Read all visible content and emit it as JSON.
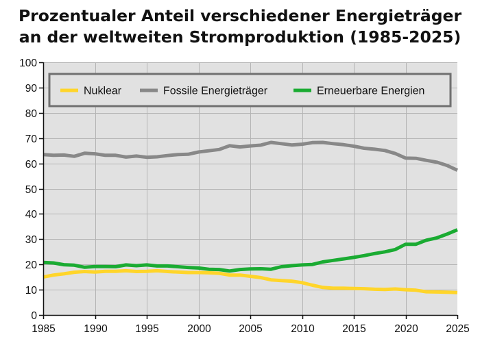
{
  "chart_data": {
    "type": "line",
    "title": [
      "Prozentualer Anteil verschiedener Energieträger",
      "an der weltweiten Stromproduktion (1985-2025)"
    ],
    "xlabel": "",
    "ylabel": "",
    "xlim": [
      1985,
      2025
    ],
    "ylim": [
      0,
      100
    ],
    "x_ticks": [
      1985,
      1990,
      1995,
      2000,
      2005,
      2010,
      2015,
      2020,
      2025
    ],
    "y_ticks": [
      0,
      10,
      20,
      30,
      40,
      50,
      60,
      70,
      80,
      90,
      100
    ],
    "grid": true,
    "legend_position": "top",
    "x": [
      1985,
      1986,
      1987,
      1988,
      1989,
      1990,
      1991,
      1992,
      1993,
      1994,
      1995,
      1996,
      1997,
      1998,
      1999,
      2000,
      2001,
      2002,
      2003,
      2004,
      2005,
      2006,
      2007,
      2008,
      2009,
      2010,
      2011,
      2012,
      2013,
      2014,
      2015,
      2016,
      2017,
      2018,
      2019,
      2020,
      2021,
      2022,
      2023,
      2024,
      2025
    ],
    "series": [
      {
        "name": "Nuklear",
        "color": "#ffd52a",
        "values": [
          15.0,
          15.8,
          16.3,
          16.9,
          17.2,
          17.0,
          17.3,
          17.3,
          17.5,
          17.2,
          17.3,
          17.5,
          17.2,
          17.0,
          16.8,
          16.8,
          16.7,
          16.5,
          15.8,
          15.8,
          15.3,
          14.8,
          13.9,
          13.6,
          13.4,
          12.8,
          11.8,
          10.9,
          10.6,
          10.6,
          10.5,
          10.4,
          10.2,
          10.1,
          10.3,
          10.0,
          9.8,
          9.2,
          9.1,
          9.0,
          8.9
        ]
      },
      {
        "name": "Fossile Energieträger",
        "color": "#888888",
        "values": [
          63.5,
          63.2,
          63.3,
          62.8,
          64.0,
          63.8,
          63.2,
          63.2,
          62.5,
          62.9,
          62.4,
          62.6,
          63.1,
          63.5,
          63.6,
          64.5,
          65.0,
          65.5,
          67.0,
          66.5,
          66.9,
          67.2,
          68.3,
          67.8,
          67.3,
          67.6,
          68.2,
          68.3,
          67.8,
          67.4,
          66.8,
          66.0,
          65.6,
          65.1,
          63.9,
          62.1,
          62.0,
          61.2,
          60.5,
          59.2,
          57.3
        ]
      },
      {
        "name": "Erneuerbare Energien",
        "color": "#1aab32",
        "values": [
          20.8,
          20.6,
          19.9,
          19.7,
          18.9,
          19.2,
          19.2,
          19.1,
          19.8,
          19.5,
          19.8,
          19.4,
          19.4,
          19.1,
          18.8,
          18.6,
          18.1,
          18.0,
          17.4,
          18.0,
          18.2,
          18.3,
          18.1,
          19.1,
          19.5,
          19.8,
          20.0,
          21.0,
          21.6,
          22.2,
          22.8,
          23.5,
          24.3,
          25.0,
          25.9,
          28.0,
          28.0,
          29.6,
          30.5,
          32.0,
          33.7
        ]
      }
    ]
  }
}
